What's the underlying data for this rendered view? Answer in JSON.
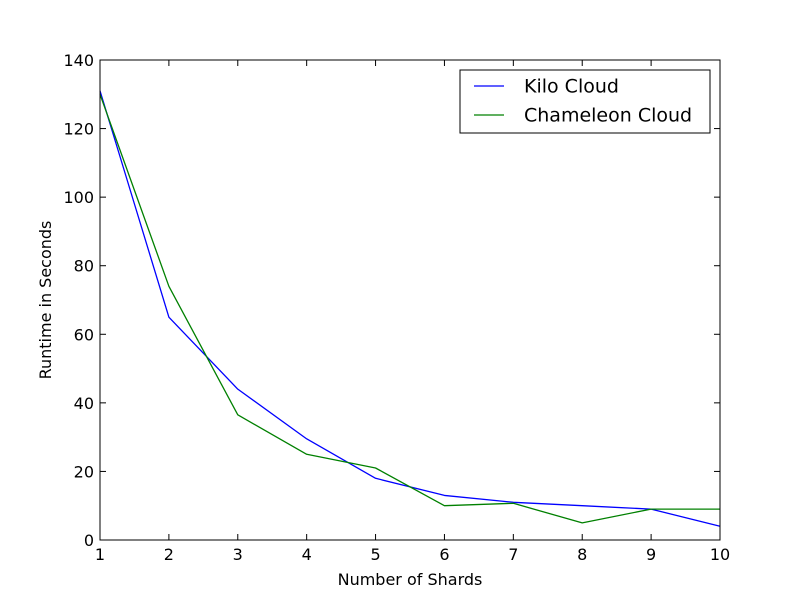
{
  "chart_data": {
    "type": "line",
    "title": "",
    "xlabel": "Number of Shards",
    "ylabel": "Runtime in Seconds",
    "xlim": [
      1,
      10
    ],
    "ylim": [
      0,
      140
    ],
    "x_ticks": [
      "1",
      "2",
      "3",
      "4",
      "5",
      "6",
      "7",
      "8",
      "9",
      "10"
    ],
    "y_ticks": [
      "0",
      "20",
      "40",
      "60",
      "80",
      "100",
      "120",
      "140"
    ],
    "x": [
      1,
      2,
      3,
      4,
      5,
      6,
      7,
      8,
      9,
      10
    ],
    "grid": false,
    "legend_position": "top-right",
    "series": [
      {
        "name": "Kilo Cloud",
        "color": "#0000ff",
        "values": [
          131,
          65,
          44,
          29.5,
          18,
          13,
          11,
          10,
          9,
          4
        ]
      },
      {
        "name": "Chameleon Cloud",
        "color": "#008000",
        "values": [
          130,
          74,
          36.5,
          25,
          21,
          10,
          10.7,
          5,
          9,
          9
        ]
      }
    ]
  }
}
